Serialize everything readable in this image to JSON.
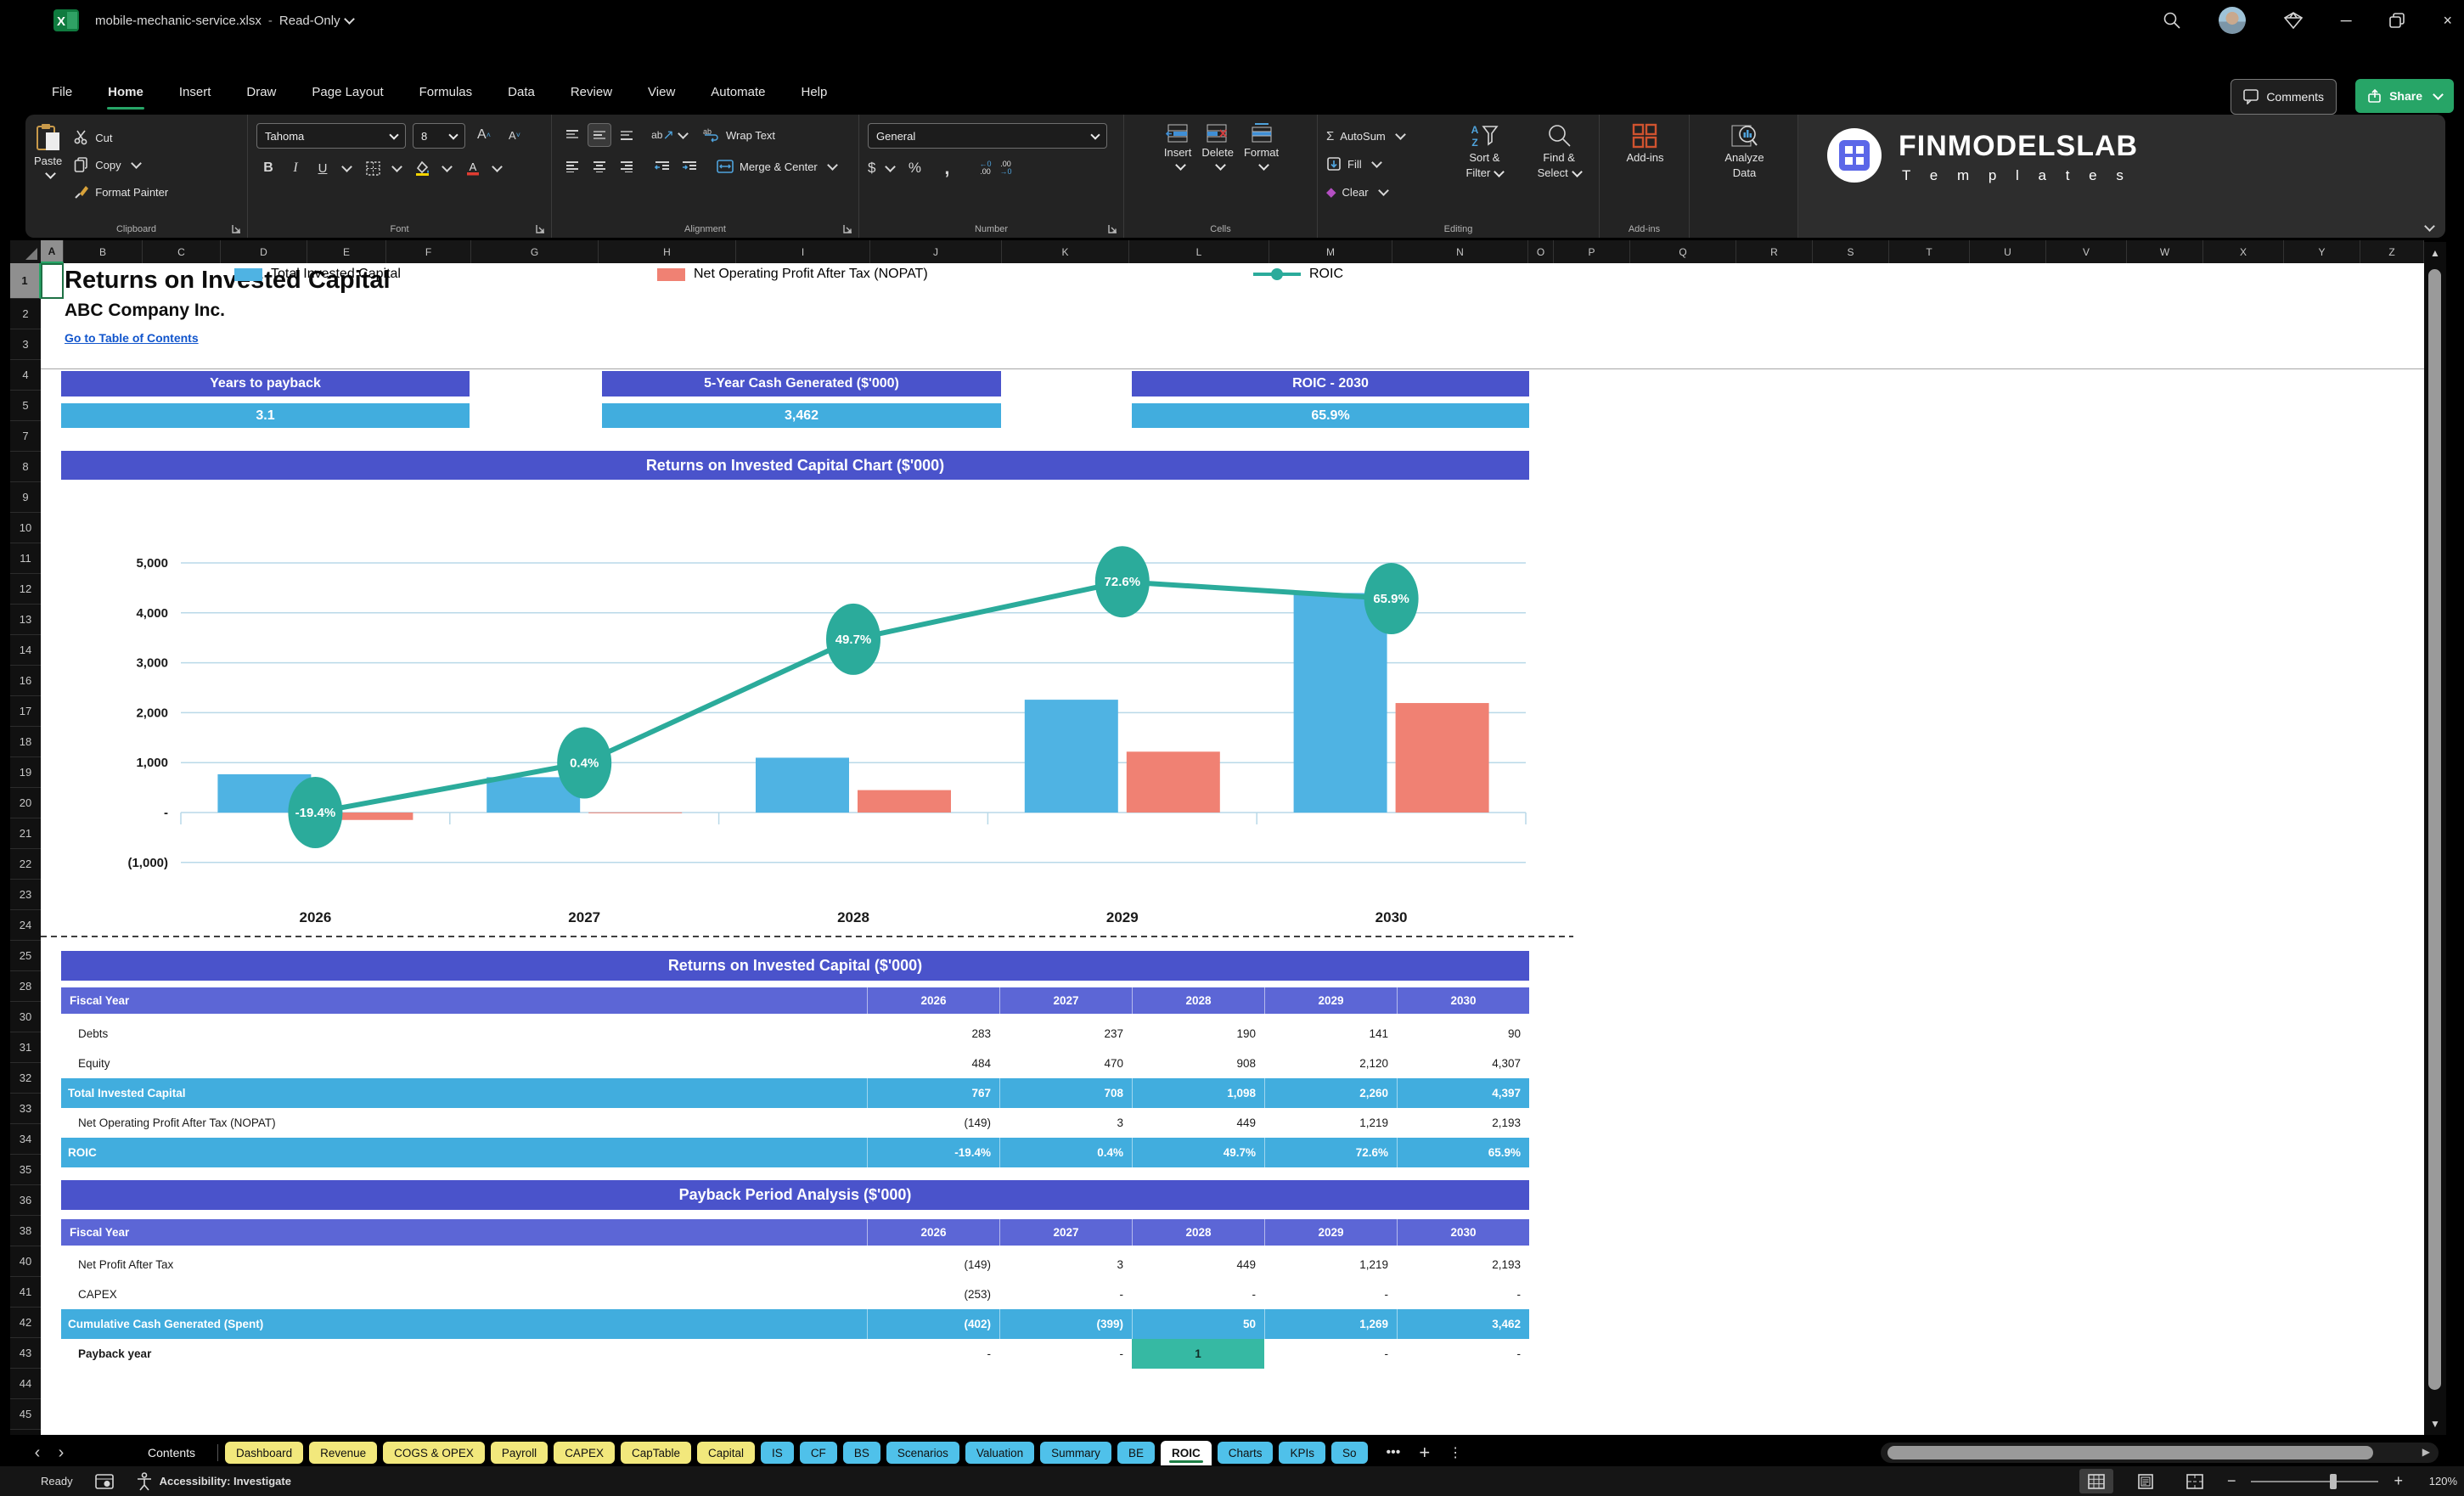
{
  "titlebar": {
    "filename": "mobile-mechanic-service.xlsx",
    "mode": "Read-Only"
  },
  "menu": {
    "items": [
      "File",
      "Home",
      "Insert",
      "Draw",
      "Page Layout",
      "Formulas",
      "Data",
      "Review",
      "View",
      "Automate",
      "Help"
    ],
    "active": "Home",
    "comments": "Comments",
    "share": "Share"
  },
  "ribbon": {
    "paste": "Paste",
    "cut": "Cut",
    "copy": "Copy",
    "format_painter": "Format Painter",
    "font_name": "Tahoma",
    "font_size": "8",
    "wrap_text": "Wrap Text",
    "merge_center": "Merge & Center",
    "number_format": "General",
    "autosum": "AutoSum",
    "fill": "Fill",
    "clear": "Clear",
    "sort1": "Sort &",
    "sort2": "Filter",
    "find1": "Find &",
    "find2": "Select",
    "insert": "Insert",
    "delete": "Delete",
    "format": "Format",
    "addins": "Add-ins",
    "analyze1": "Analyze",
    "analyze2": "Data",
    "groups": {
      "clipboard": "Clipboard",
      "font": "Font",
      "alignment": "Alignment",
      "number": "Number",
      "cells": "Cells",
      "editing": "Editing",
      "addins": "Add-ins"
    }
  },
  "logo": {
    "title": "FINMODELSLAB",
    "subtitle": "T e m p l a t e s"
  },
  "grid": {
    "selected_column": "A",
    "selected_row": "1",
    "columns": [
      [
        "A",
        27
      ],
      [
        "B",
        93
      ],
      [
        "C",
        92
      ],
      [
        "D",
        102
      ],
      [
        "E",
        93
      ],
      [
        "F",
        100
      ],
      [
        "G",
        150
      ],
      [
        "H",
        162
      ],
      [
        "I",
        158
      ],
      [
        "J",
        155
      ],
      [
        "K",
        150
      ],
      [
        "L",
        165
      ],
      [
        "M",
        145
      ],
      [
        "N",
        160
      ],
      [
        "O",
        30
      ],
      [
        "P",
        90
      ],
      [
        "Q",
        125
      ],
      [
        "R",
        90
      ],
      [
        "S",
        90
      ],
      [
        "T",
        95
      ],
      [
        "U",
        90
      ],
      [
        "V",
        95
      ],
      [
        "W",
        90
      ],
      [
        "X",
        95
      ],
      [
        "Y",
        90
      ],
      [
        "Z",
        75
      ]
    ],
    "rows": [
      1,
      2,
      3,
      4,
      5,
      7,
      8,
      9,
      10,
      11,
      12,
      13,
      14,
      16,
      17,
      18,
      19,
      20,
      21,
      22,
      23,
      24,
      25,
      28,
      30,
      31,
      32,
      33,
      34,
      35,
      36,
      38,
      40,
      41,
      42,
      43,
      44,
      45
    ]
  },
  "doc": {
    "title": "Returns on Invested Capital",
    "company": "ABC Company Inc.",
    "link": "Go to Table of Contents"
  },
  "metrics": [
    {
      "label": "Years to payback",
      "value": "3.1"
    },
    {
      "label": "5-Year Cash Generated ($'000)",
      "value": "3,462"
    },
    {
      "label": "ROIC - 2030",
      "value": "65.9%"
    }
  ],
  "chart_title": "Returns on Invested Capital Chart ($'000)",
  "chart_data": {
    "type": "combo-bar-line",
    "title": "Returns on Invested Capital Chart ($'000)",
    "categories": [
      "2026",
      "2027",
      "2028",
      "2029",
      "2030"
    ],
    "series": [
      {
        "name": "Total Invested Capital",
        "type": "bar",
        "color": "#4FB3E3",
        "values": [
          767,
          708,
          1098,
          2260,
          4397
        ]
      },
      {
        "name": "Net Operating Profit After Tax (NOPAT)",
        "type": "bar",
        "color": "#F08173",
        "values": [
          -149,
          3,
          449,
          1219,
          2193
        ]
      },
      {
        "name": "ROIC",
        "type": "line",
        "color": "#2BAB9B",
        "axis": "secondary",
        "values_pct": [
          -19.4,
          0.4,
          49.7,
          72.6,
          65.9
        ],
        "labels": [
          "-19.4%",
          "0.4%",
          "49.7%",
          "72.6%",
          "65.9%"
        ]
      }
    ],
    "y_axis": {
      "ticks": [
        5000,
        4000,
        3000,
        2000,
        1000,
        0,
        -1000
      ],
      "tick_labels": [
        "5,000",
        "4,000",
        "3,000",
        "2,000",
        "1,000",
        "-",
        "(1,000)"
      ],
      "range": [
        -1000,
        5000
      ]
    },
    "grid": true,
    "legend_position": "top"
  },
  "tables": [
    {
      "title": "Returns on Invested Capital ($'000)",
      "header": {
        "label": "Fiscal Year",
        "years": [
          "2026",
          "2027",
          "2028",
          "2029",
          "2030"
        ]
      },
      "rows": [
        {
          "label": "Debts",
          "values": [
            "283",
            "237",
            "190",
            "141",
            "90"
          ],
          "style": "plain"
        },
        {
          "label": "Equity",
          "values": [
            "484",
            "470",
            "908",
            "2,120",
            "4,307"
          ],
          "style": "plain"
        },
        {
          "label": "Total Invested Capital",
          "values": [
            "767",
            "708",
            "1,098",
            "2,260",
            "4,397"
          ],
          "style": "hl"
        },
        {
          "label": "Net Operating Profit After Tax (NOPAT)",
          "values": [
            "(149)",
            "3",
            "449",
            "1,219",
            "2,193"
          ],
          "style": "plain"
        },
        {
          "label": "ROIC",
          "values": [
            "-19.4%",
            "0.4%",
            "49.7%",
            "72.6%",
            "65.9%"
          ],
          "style": "hl"
        }
      ]
    },
    {
      "title": "Payback Period Analysis ($'000)",
      "header": {
        "label": "Fiscal Year",
        "years": [
          "2026",
          "2027",
          "2028",
          "2029",
          "2030"
        ]
      },
      "rows": [
        {
          "label": "Net Profit After Tax",
          "values": [
            "(149)",
            "3",
            "449",
            "1,219",
            "2,193"
          ],
          "style": "plain"
        },
        {
          "label": "CAPEX",
          "values": [
            "(253)",
            "-",
            "-",
            "-",
            "-"
          ],
          "style": "plain"
        },
        {
          "label": "Cumulative Cash Generated (Spent)",
          "values": [
            "(402)",
            "(399)",
            "50",
            "1,269",
            "3,462"
          ],
          "style": "hl"
        },
        {
          "label": "Payback year",
          "values": [
            "-",
            "-",
            "1",
            "-",
            "-"
          ],
          "style": "plain",
          "bold_label": true,
          "accent_cell": 2
        }
      ]
    }
  ],
  "sheet_tabs": {
    "contents": "Contents",
    "tabs": [
      {
        "label": "Dashboard",
        "color": "yellow"
      },
      {
        "label": "Revenue",
        "color": "yellow"
      },
      {
        "label": "COGS & OPEX",
        "color": "yellow"
      },
      {
        "label": "Payroll",
        "color": "yellow"
      },
      {
        "label": "CAPEX",
        "color": "yellow"
      },
      {
        "label": "CapTable",
        "color": "yellow"
      },
      {
        "label": "Capital",
        "color": "yellow"
      },
      {
        "label": "IS",
        "color": "blue"
      },
      {
        "label": "CF",
        "color": "blue"
      },
      {
        "label": "BS",
        "color": "blue"
      },
      {
        "label": "Scenarios",
        "color": "blue"
      },
      {
        "label": "Valuation",
        "color": "blue"
      },
      {
        "label": "Summary",
        "color": "blue"
      },
      {
        "label": "BE",
        "color": "blue"
      },
      {
        "label": "ROIC",
        "color": "active"
      },
      {
        "label": "Charts",
        "color": "blue"
      },
      {
        "label": "KPIs",
        "color": "blue"
      },
      {
        "label": "So",
        "color": "blue"
      }
    ]
  },
  "status": {
    "ready": "Ready",
    "accessibility": "Accessibility: Investigate",
    "zoom": "120%"
  },
  "colors": {
    "accent_green": "#27A567",
    "header_purple": "#4A53CB",
    "subheader_purple": "#5C66D6",
    "value_blue": "#41ADDE",
    "bar_blue": "#4FB3E3",
    "bar_salmon": "#F08173",
    "line_teal": "#2BAB9B",
    "payback_cell": "#36B9A3",
    "tab_yellow": "#F2E87C",
    "tab_blue": "#4FC1EA",
    "link_blue": "#1155CC"
  }
}
